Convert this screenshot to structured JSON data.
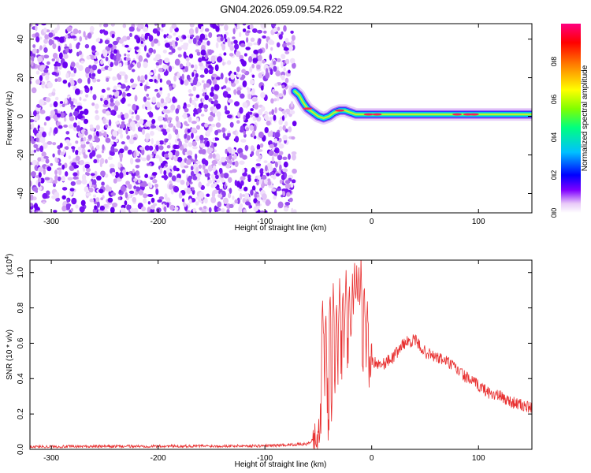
{
  "title": "GN04.2026.059.09.54.R22",
  "chart_data": [
    {
      "type": "heatmap",
      "xlabel": "Height of straight line (km)",
      "ylabel": "Frequency (Hz)",
      "xlim": [
        -320,
        150
      ],
      "ylim": [
        -50,
        48
      ],
      "xticks": [
        -300,
        -200,
        -100,
        0,
        100
      ],
      "yticks": [
        -40,
        -20,
        0,
        20,
        40
      ],
      "colorbar": {
        "label": "Normalized spectral amplitude",
        "range": [
          0,
          1
        ],
        "ticks": [
          "0.0",
          "0.2",
          "0.4",
          "0.6",
          "0.8"
        ],
        "colors": [
          "#ffffff",
          "#e8c8f8",
          "#8000ff",
          "#0000ff",
          "#00c0ff",
          "#00ff80",
          "#80ff00",
          "#ffff00",
          "#ff8000",
          "#ff0000",
          "#ff0080"
        ]
      },
      "noise_region_x": [
        -320,
        -72
      ],
      "signal_trace": {
        "x": [
          -72,
          -68,
          -64,
          -60,
          -55,
          -50,
          -45,
          -40,
          -35,
          -30,
          -25,
          -20,
          -15,
          -10,
          -5,
          0,
          20,
          40,
          60,
          80,
          100,
          120,
          150
        ],
        "y": [
          13,
          11,
          7,
          4,
          2,
          0,
          -1,
          0,
          2,
          3,
          3,
          2,
          1,
          1,
          1,
          1,
          1,
          1,
          1,
          1,
          1,
          1,
          1
        ]
      }
    },
    {
      "type": "line",
      "xlabel": "Height of straight line (km)",
      "ylabel": "SNR (10 * v/v)",
      "yscale_label": "(x10",
      "yscale_exp": "4",
      "yscale_close": ")",
      "xlim": [
        -320,
        150
      ],
      "ylim": [
        0,
        1.07
      ],
      "xticks": [
        -300,
        -200,
        -100,
        0,
        100
      ],
      "yticks": [
        "0.0",
        "0.2",
        "0.4",
        "0.6",
        "0.8",
        "1.0"
      ],
      "color": "#e83030",
      "envelope": {
        "x": [
          -320,
          -100,
          -60,
          -50,
          -47,
          -45,
          -43,
          -40,
          -35,
          -30,
          -25,
          -20,
          -15,
          -10,
          -5,
          0,
          10,
          20,
          30,
          40,
          50,
          60,
          70,
          80,
          90,
          100,
          110,
          120,
          130,
          140,
          150
        ],
        "y": [
          0.015,
          0.02,
          0.03,
          0.08,
          0.2,
          0.5,
          0.3,
          0.2,
          0.45,
          0.55,
          0.6,
          0.65,
          0.6,
          0.6,
          0.55,
          0.5,
          0.48,
          0.52,
          0.6,
          0.62,
          0.55,
          0.52,
          0.5,
          0.45,
          0.4,
          0.36,
          0.32,
          0.3,
          0.27,
          0.25,
          0.23
        ]
      },
      "spikes": {
        "x": [
          -46,
          -43,
          -39,
          -36,
          -33,
          -30,
          -27,
          -24,
          -21,
          -18,
          -16,
          -14,
          -12,
          -10,
          -7,
          -4
        ],
        "y": [
          0.85,
          0.8,
          0.9,
          0.92,
          0.85,
          0.95,
          0.92,
          1.0,
          0.95,
          0.98,
          1.07,
          1.04,
          1.03,
          1.07,
          0.95,
          0.85
        ]
      }
    }
  ]
}
